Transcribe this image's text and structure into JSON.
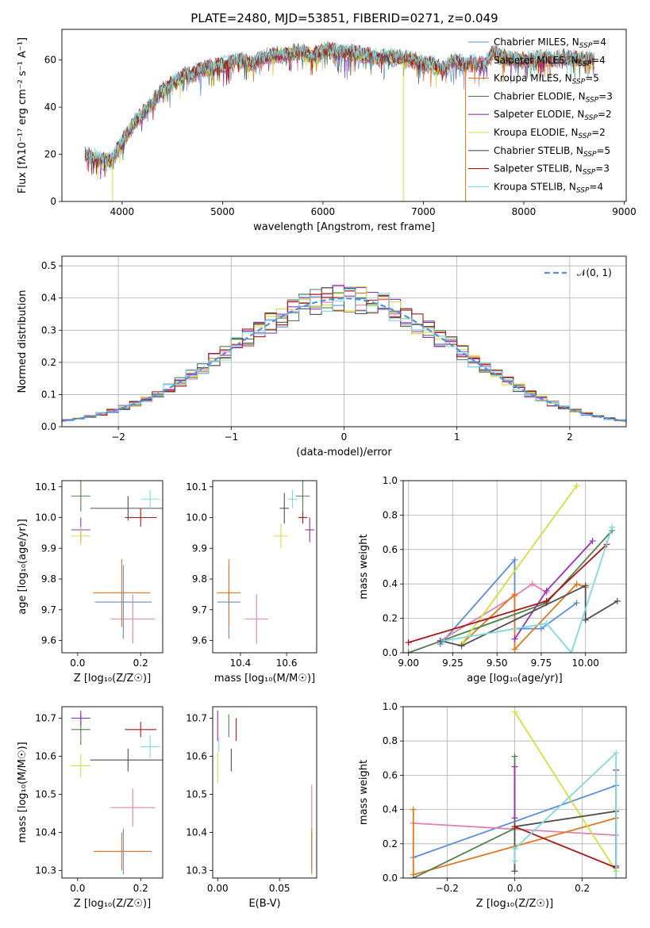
{
  "figure_title": "PLATE=2480, MJD=53851, FIBERID=0271, z=0.049",
  "colors": {
    "Chabrier MILES": "#5b8ddc",
    "Salpeter MILES": "#e080b0",
    "Kroupa MILES": "#e07820",
    "Chabrier ELODIE": "#508050",
    "Salpeter ELODIE": "#9a30b8",
    "Kroupa ELODIE": "#d0e040",
    "Chabrier STELIB": "#505050",
    "Salpeter STELIB": "#a81818",
    "Kroupa STELIB": "#80d8e0",
    "normal": "#5b8ddc"
  },
  "chart_data": [
    {
      "type": "line",
      "id": "spectrum",
      "xlabel": "wavelength [Angstrom, rest frame]",
      "ylabel": "Flux [fλ10⁻¹⁷ erg cm⁻² s⁻¹ A⁻¹]",
      "xlim": [
        3400,
        9020
      ],
      "ylim": [
        0,
        73
      ],
      "xticks": [
        4000,
        5000,
        6000,
        7000,
        8000,
        9000
      ],
      "yticks": [
        0,
        20,
        40,
        60
      ],
      "legend_position": "top-right",
      "legend": [
        {
          "base": "Chabrier MILES, N",
          "sub": "SSP",
          "tail": "=4"
        },
        {
          "base": "Salpeter MILES, N",
          "sub": "SSP",
          "tail": "=4"
        },
        {
          "base": "Kroupa MILES, N",
          "sub": "SSP",
          "tail": "=5"
        },
        {
          "base": "Chabrier ELODIE, N",
          "sub": "SSP",
          "tail": "=3"
        },
        {
          "base": "Salpeter ELODIE, N",
          "sub": "SSP",
          "tail": "=2"
        },
        {
          "base": "Kroupa ELODIE, N",
          "sub": "SSP",
          "tail": "=2"
        },
        {
          "base": "Chabrier STELIB, N",
          "sub": "SSP",
          "tail": "=5"
        },
        {
          "base": "Salpeter STELIB, N",
          "sub": "SSP",
          "tail": "=3"
        },
        {
          "base": "Kroupa STELIB, N",
          "sub": "SSP",
          "tail": "=4"
        }
      ],
      "continuum": [
        [
          3630,
          20
        ],
        [
          3700,
          19
        ],
        [
          3800,
          17
        ],
        [
          3900,
          18
        ],
        [
          4000,
          25
        ],
        [
          4100,
          32
        ],
        [
          4200,
          37
        ],
        [
          4300,
          42
        ],
        [
          4400,
          47
        ],
        [
          4500,
          50
        ],
        [
          4600,
          53
        ],
        [
          4700,
          54
        ],
        [
          4800,
          56
        ],
        [
          4900,
          57
        ],
        [
          5000,
          58
        ],
        [
          5100,
          59
        ],
        [
          5200,
          60
        ],
        [
          5300,
          58
        ],
        [
          5400,
          61
        ],
        [
          5500,
          62
        ],
        [
          5600,
          62
        ],
        [
          5700,
          63
        ],
        [
          5800,
          63.5
        ],
        [
          5900,
          62
        ],
        [
          6000,
          64
        ],
        [
          6100,
          64
        ],
        [
          6200,
          63
        ],
        [
          6300,
          63
        ],
        [
          6400,
          62
        ],
        [
          6500,
          62
        ],
        [
          6560,
          60
        ],
        [
          6600,
          62
        ],
        [
          6700,
          61
        ],
        [
          6800,
          61
        ],
        [
          6900,
          60
        ],
        [
          7000,
          58
        ],
        [
          7100,
          58
        ],
        [
          7200,
          56
        ],
        [
          7300,
          60
        ],
        [
          7400,
          58
        ]
      ],
      "continuum_red": [
        [
          7400,
          58
        ],
        [
          7500,
          59
        ],
        [
          7600,
          58
        ],
        [
          7700,
          63
        ],
        [
          7800,
          61
        ],
        [
          7900,
          60
        ],
        [
          8000,
          60
        ],
        [
          8100,
          60
        ],
        [
          8200,
          61
        ],
        [
          8300,
          60
        ],
        [
          8400,
          61
        ],
        [
          8500,
          61
        ],
        [
          8600,
          60
        ],
        [
          8700,
          60
        ]
      ],
      "drops": [
        {
          "x": 3905,
          "series": "Kroupa ELODIE"
        },
        {
          "x": 6800,
          "series": "Kroupa ELODIE"
        },
        {
          "x": 7420,
          "series": "Kroupa MILES"
        }
      ]
    },
    {
      "type": "step",
      "id": "residuals",
      "xlabel": "(data-model)/error",
      "ylabel": "Normed distribution",
      "xlim": [
        -2.5,
        2.5
      ],
      "ylim": [
        0,
        0.53
      ],
      "xticks": [
        -2,
        -1,
        0,
        1,
        2
      ],
      "yticks": [
        0.0,
        0.1,
        0.2,
        0.3,
        0.4,
        0.5
      ],
      "grid": true,
      "legend_position": "top-right",
      "legend": [
        {
          "name": "𝒩(0, 1)"
        }
      ],
      "bin_width": 0.1
    },
    {
      "type": "scatter",
      "id": "age_vs_Z",
      "xlabel": "Z [log₁₀(Z/Z☉)]",
      "ylabel": "age  [log₁₀(age/yr)]",
      "xlim": [
        -0.05,
        0.27
      ],
      "ylim": [
        9.56,
        10.12
      ],
      "xticks": [
        0.0,
        0.2
      ],
      "yticks": [
        9.6,
        9.7,
        9.8,
        9.9,
        10.0,
        10.1
      ],
      "points": [
        {
          "s": "Chabrier MILES",
          "x": 0.145,
          "y": 9.725,
          "xerr": 0.09,
          "yerr": 0.12
        },
        {
          "s": "Salpeter MILES",
          "x": 0.175,
          "y": 9.67,
          "xerr": 0.07,
          "yerr": 0.08
        },
        {
          "s": "Kroupa MILES",
          "x": 0.14,
          "y": 9.755,
          "xerr": 0.09,
          "yerr": 0.11
        },
        {
          "s": "Chabrier ELODIE",
          "x": 0.01,
          "y": 10.07,
          "xerr": 0.03,
          "yerr": 0.05
        },
        {
          "s": "Salpeter ELODIE",
          "x": 0.01,
          "y": 9.96,
          "xerr": 0.03,
          "yerr": 0.04
        },
        {
          "s": "Kroupa ELODIE",
          "x": 0.01,
          "y": 9.94,
          "xerr": 0.03,
          "yerr": 0.03
        },
        {
          "s": "Chabrier STELIB",
          "x": 0.16,
          "y": 10.03,
          "xerr": 0.12,
          "yerr": 0.04
        },
        {
          "s": "Salpeter STELIB",
          "x": 0.2,
          "y": 10.0,
          "xerr": 0.05,
          "yerr": 0.03
        },
        {
          "s": "Kroupa STELIB",
          "x": 0.23,
          "y": 10.06,
          "xerr": 0.03,
          "yerr": 0.03
        }
      ]
    },
    {
      "type": "scatter",
      "id": "age_vs_mass",
      "xlabel": "mass [log₁₀(M/M☉)]",
      "ylabel": "",
      "xlim": [
        10.28,
        10.73
      ],
      "ylim": [
        9.56,
        10.12
      ],
      "xticks": [
        10.4,
        10.6
      ],
      "yticks": [
        9.6,
        9.7,
        9.8,
        9.9,
        10.0,
        10.1
      ],
      "points": [
        {
          "s": "Chabrier MILES",
          "x": 10.35,
          "y": 9.725,
          "xerr": 0.05,
          "yerr": 0.12
        },
        {
          "s": "Salpeter MILES",
          "x": 10.47,
          "y": 9.67,
          "xerr": 0.05,
          "yerr": 0.08
        },
        {
          "s": "Kroupa MILES",
          "x": 10.35,
          "y": 9.755,
          "xerr": 0.05,
          "yerr": 0.11
        },
        {
          "s": "Chabrier ELODIE",
          "x": 10.67,
          "y": 10.07,
          "xerr": 0.03,
          "yerr": 0.05
        },
        {
          "s": "Salpeter ELODIE",
          "x": 10.7,
          "y": 9.96,
          "xerr": 0.02,
          "yerr": 0.04
        },
        {
          "s": "Kroupa ELODIE",
          "x": 10.575,
          "y": 9.94,
          "xerr": 0.03,
          "yerr": 0.04
        },
        {
          "s": "Chabrier STELIB",
          "x": 10.59,
          "y": 10.03,
          "xerr": 0.02,
          "yerr": 0.05
        },
        {
          "s": "Salpeter STELIB",
          "x": 10.67,
          "y": 10.0,
          "xerr": 0.02,
          "yerr": 0.02
        },
        {
          "s": "Kroupa STELIB",
          "x": 10.625,
          "y": 10.06,
          "xerr": 0.02,
          "yerr": 0.03
        }
      ]
    },
    {
      "type": "line",
      "id": "mass_weight_vs_age",
      "xlabel": "age  [log₁₀(age/yr)]",
      "ylabel": "mass weight",
      "xlim": [
        8.97,
        10.23
      ],
      "ylim": [
        0.0,
        1.0
      ],
      "grid": true,
      "xticks": [
        9.0,
        9.25,
        9.5,
        9.75,
        10.0
      ],
      "yticks": [
        0.0,
        0.2,
        0.4,
        0.6,
        0.8,
        1.0
      ],
      "series": [
        {
          "name": "Chabrier MILES",
          "points": [
            [
              9.18,
              0.05
            ],
            [
              9.6,
              0.54
            ],
            [
              9.6,
              0.14
            ],
            [
              9.75,
              0.14
            ],
            [
              9.95,
              0.29
            ]
          ]
        },
        {
          "name": "Salpeter MILES",
          "points": [
            [
              9.18,
              0.07
            ],
            [
              9.6,
              0.33
            ],
            [
              9.7,
              0.4
            ],
            [
              9.78,
              0.35
            ]
          ]
        },
        {
          "name": "Kroupa MILES",
          "points": [
            [
              9.3,
              0.05
            ],
            [
              9.6,
              0.34
            ],
            [
              9.6,
              0.02
            ],
            [
              9.95,
              0.4
            ],
            [
              10.0,
              0.38
            ]
          ]
        },
        {
          "name": "Chabrier ELODIE",
          "points": [
            [
              9.0,
              0.0
            ],
            [
              9.78,
              0.29
            ],
            [
              10.15,
              0.71
            ]
          ]
        },
        {
          "name": "Salpeter ELODIE",
          "points": [
            [
              9.6,
              0.08
            ],
            [
              9.78,
              0.36
            ],
            [
              10.04,
              0.65
            ]
          ]
        },
        {
          "name": "Kroupa ELODIE",
          "points": [
            [
              9.3,
              0.05
            ],
            [
              9.95,
              0.97
            ]
          ]
        },
        {
          "name": "Chabrier STELIB",
          "points": [
            [
              9.18,
              0.07
            ],
            [
              9.3,
              0.04
            ],
            [
              10.0,
              0.39
            ],
            [
              10.0,
              0.19
            ],
            [
              10.18,
              0.3
            ]
          ]
        },
        {
          "name": "Salpeter STELIB",
          "points": [
            [
              9.0,
              0.06
            ],
            [
              9.78,
              0.3
            ],
            [
              10.12,
              0.63
            ]
          ]
        },
        {
          "name": "Kroupa STELIB",
          "points": [
            [
              9.2,
              0.07
            ],
            [
              9.78,
              0.17
            ],
            [
              9.92,
              0.0
            ],
            [
              10.15,
              0.73
            ]
          ]
        }
      ]
    },
    {
      "type": "scatter",
      "id": "mass_vs_Z",
      "xlabel": "Z [log₁₀(Z/Z☉)]",
      "ylabel": "mass [log₁₀(M/M☉)]",
      "xlim": [
        -0.05,
        0.27
      ],
      "ylim": [
        10.28,
        10.73
      ],
      "xticks": [
        0.0,
        0.2
      ],
      "yticks": [
        10.3,
        10.4,
        10.5,
        10.6,
        10.7
      ],
      "points": [
        {
          "s": "Chabrier MILES",
          "x": 0.145,
          "y": 10.35,
          "xerr": 0.09,
          "yerr": 0.06
        },
        {
          "s": "Salpeter MILES",
          "x": 0.175,
          "y": 10.465,
          "xerr": 0.07,
          "yerr": 0.05
        },
        {
          "s": "Kroupa MILES",
          "x": 0.14,
          "y": 10.35,
          "xerr": 0.09,
          "yerr": 0.05
        },
        {
          "s": "Chabrier ELODIE",
          "x": 0.01,
          "y": 10.67,
          "xerr": 0.03,
          "yerr": 0.04
        },
        {
          "s": "Salpeter ELODIE",
          "x": 0.01,
          "y": 10.7,
          "xerr": 0.03,
          "yerr": 0.02
        },
        {
          "s": "Kroupa ELODIE",
          "x": 0.01,
          "y": 10.575,
          "xerr": 0.03,
          "yerr": 0.03
        },
        {
          "s": "Chabrier STELIB",
          "x": 0.16,
          "y": 10.59,
          "xerr": 0.12,
          "yerr": 0.03
        },
        {
          "s": "Salpeter STELIB",
          "x": 0.2,
          "y": 10.67,
          "xerr": 0.05,
          "yerr": 0.02
        },
        {
          "s": "Kroupa STELIB",
          "x": 0.23,
          "y": 10.625,
          "xerr": 0.03,
          "yerr": 0.03
        }
      ]
    },
    {
      "type": "scatter",
      "id": "mass_vs_ebv",
      "xlabel": "E(B-V)",
      "ylabel": "",
      "xlim": [
        -0.004,
        0.08
      ],
      "ylim": [
        10.28,
        10.73
      ],
      "xticks": [
        0.0,
        0.05
      ],
      "yticks": [
        10.3,
        10.4,
        10.5,
        10.6,
        10.7
      ],
      "points": [
        {
          "s": "Chabrier MILES",
          "x": 0.076,
          "y": 10.35,
          "xerr": 0.0,
          "yerr": 0.05
        },
        {
          "s": "Salpeter MILES",
          "x": 0.076,
          "y": 10.465,
          "xerr": 0.0,
          "yerr": 0.06
        },
        {
          "s": "Kroupa MILES",
          "x": 0.076,
          "y": 10.35,
          "xerr": 0.0,
          "yerr": 0.06
        },
        {
          "s": "Chabrier ELODIE",
          "x": 0.009,
          "y": 10.68,
          "xerr": 0.0,
          "yerr": 0.03
        },
        {
          "s": "Salpeter ELODIE",
          "x": 0.0,
          "y": 10.68,
          "xerr": 0.0,
          "yerr": 0.04
        },
        {
          "s": "Kroupa ELODIE",
          "x": 0.0,
          "y": 10.57,
          "xerr": 0.0,
          "yerr": 0.04
        },
        {
          "s": "Chabrier STELIB",
          "x": 0.011,
          "y": 10.59,
          "xerr": 0.0,
          "yerr": 0.03
        },
        {
          "s": "Salpeter STELIB",
          "x": 0.015,
          "y": 10.67,
          "xerr": 0.0,
          "yerr": 0.03
        },
        {
          "s": "Kroupa STELIB",
          "x": 0.001,
          "y": 10.63,
          "xerr": 0.0,
          "yerr": 0.02
        }
      ]
    },
    {
      "type": "line",
      "id": "mass_weight_vs_Z",
      "xlabel": "Z [log₁₀(Z/Z☉)]",
      "ylabel": "mass weight",
      "xlim": [
        -0.33,
        0.33
      ],
      "ylim": [
        0.0,
        1.0
      ],
      "grid": true,
      "xticks": [
        -0.2,
        0.0,
        0.2
      ],
      "yticks": [
        0.0,
        0.2,
        0.4,
        0.6,
        0.8,
        1.0
      ],
      "series": [
        {
          "name": "Chabrier MILES",
          "points": [
            [
              -0.3,
              0.12
            ],
            [
              0.3,
              0.54
            ]
          ]
        },
        {
          "name": "Salpeter MILES",
          "points": [
            [
              -0.3,
              0.32
            ],
            [
              0.3,
              0.25
            ]
          ]
        },
        {
          "name": "Kroupa MILES",
          "points": [
            [
              -0.3,
              0.4
            ],
            [
              -0.3,
              0.02
            ],
            [
              0.3,
              0.35
            ]
          ]
        },
        {
          "name": "Chabrier ELODIE",
          "points": [
            [
              -0.3,
              0.0
            ],
            [
              0.0,
              0.29
            ],
            [
              0.0,
              0.71
            ]
          ]
        },
        {
          "name": "Salpeter ELODIE",
          "points": [
            [
              0.0,
              0.35
            ],
            [
              0.0,
              0.65
            ]
          ]
        },
        {
          "name": "Kroupa ELODIE",
          "points": [
            [
              0.0,
              0.97
            ],
            [
              0.3,
              0.04
            ]
          ]
        },
        {
          "name": "Chabrier STELIB",
          "points": [
            [
              0.0,
              0.04
            ],
            [
              0.0,
              0.3
            ],
            [
              0.3,
              0.39
            ],
            [
              0.3,
              0.07
            ]
          ]
        },
        {
          "name": "Salpeter STELIB",
          "points": [
            [
              0.0,
              0.3
            ],
            [
              0.3,
              0.06
            ],
            [
              0.3,
              0.63
            ]
          ]
        },
        {
          "name": "Kroupa STELIB",
          "points": [
            [
              0.0,
              0.1
            ],
            [
              0.0,
              0.17
            ],
            [
              0.3,
              0.73
            ],
            [
              0.3,
              0.0
            ]
          ]
        }
      ]
    }
  ]
}
